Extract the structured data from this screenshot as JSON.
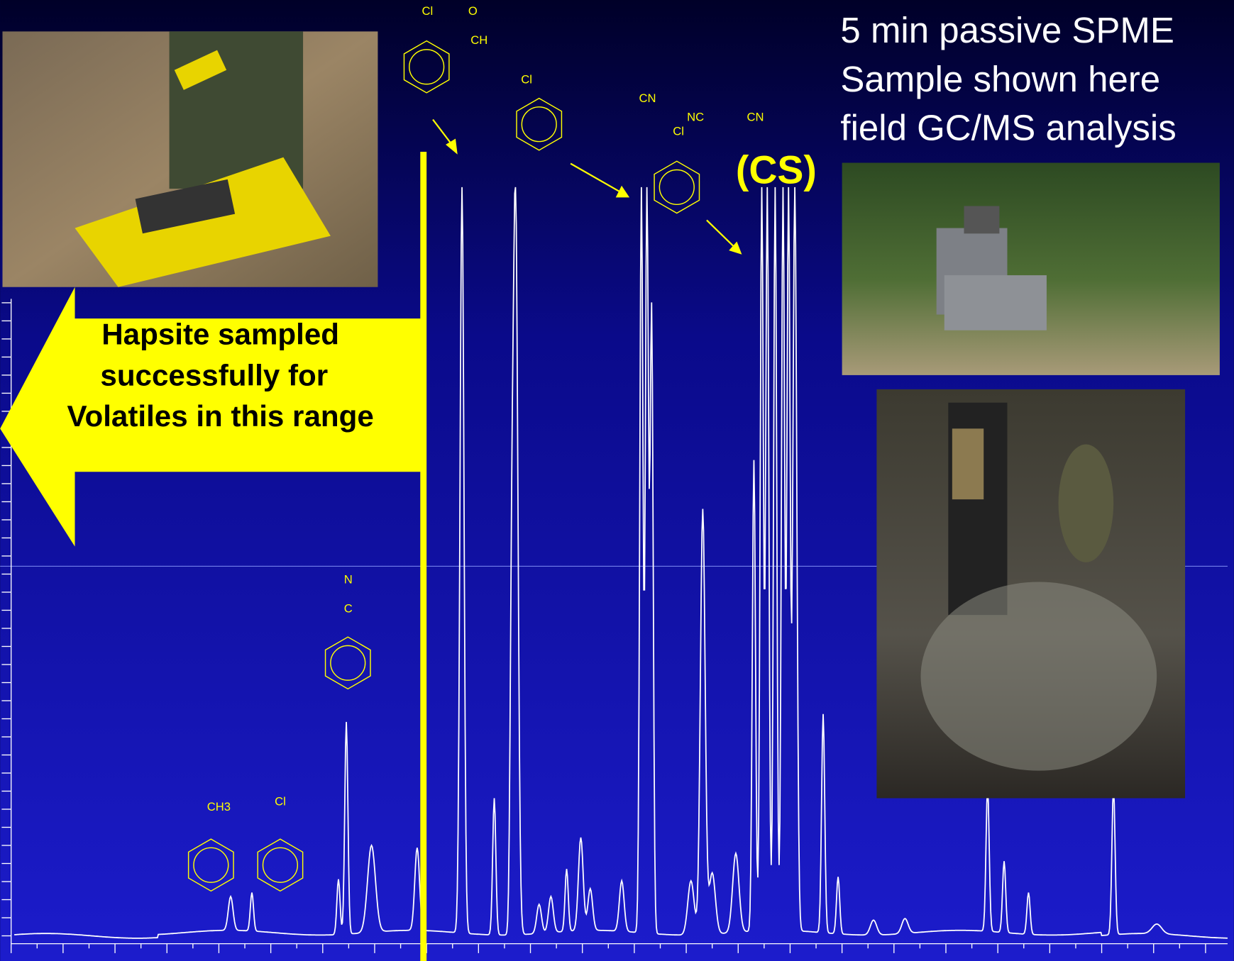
{
  "slide": {
    "title_lines": [
      "5 min passive SPME",
      "Sample shown here",
      "field GC/MS analysis"
    ],
    "cs_label": "(CS)",
    "arrow_text_lines": [
      "Hapsite sampled",
      "successfully for",
      "Volatiles in this range"
    ],
    "structures": [
      {
        "labels": [
          "CH3"
        ]
      },
      {
        "labels": [
          "Cl"
        ]
      },
      {
        "labels": [
          "N",
          "C"
        ]
      },
      {
        "labels": [
          "Cl",
          "O",
          "CH"
        ]
      },
      {
        "labels": [
          "Cl",
          "CN"
        ]
      },
      {
        "labels": [
          "NC",
          "CN",
          "Cl"
        ]
      }
    ]
  }
}
